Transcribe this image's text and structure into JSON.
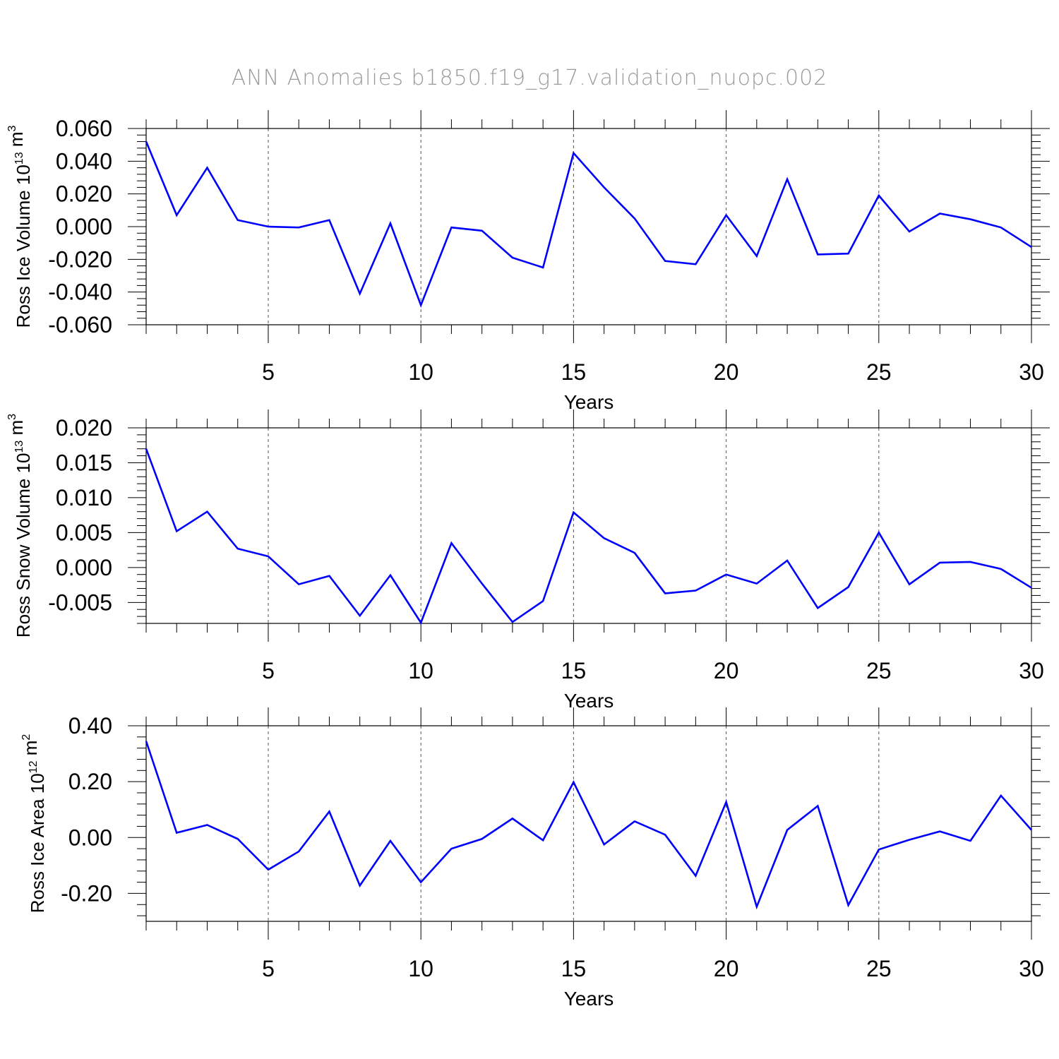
{
  "chart_data": [
    {
      "type": "line",
      "title": "ANN Anomalies b1850.f19_g17.validation_nuopc.002",
      "ylabel": {
        "prefix": "Ross Ice Volume 10",
        "exp": "13",
        "unit": " m",
        "unit_exp": "3"
      },
      "xlabel": "Years",
      "xlim": [
        1,
        30
      ],
      "ylim": [
        -0.06,
        0.06
      ],
      "x_ticks": [
        5,
        10,
        15,
        20,
        25,
        30
      ],
      "x_tick_labels": [
        "5",
        "10",
        "15",
        "20",
        "25",
        "30"
      ],
      "y_ticks": [
        -0.06,
        -0.04,
        -0.02,
        0.0,
        0.02,
        0.04,
        0.06
      ],
      "y_tick_labels": [
        "-0.060",
        "-0.040",
        "-0.020",
        "0.000",
        "0.020",
        "0.040",
        "0.060"
      ],
      "grid": "vertical dashed at major x ticks",
      "series": [
        {
          "name": "Ross Ice Volume",
          "color": "#0000ff",
          "x": [
            1,
            2,
            3,
            4,
            5,
            6,
            7,
            8,
            9,
            10,
            11,
            12,
            13,
            14,
            15,
            16,
            17,
            18,
            19,
            20,
            21,
            22,
            23,
            24,
            25,
            26,
            27,
            28,
            29,
            30
          ],
          "values": [
            0.052,
            0.007,
            0.036,
            0.004,
            0.0,
            -0.0005,
            0.004,
            -0.041,
            0.002,
            -0.048,
            -0.0005,
            -0.0025,
            -0.019,
            -0.025,
            0.045,
            0.024,
            0.005,
            -0.021,
            -0.023,
            0.007,
            -0.018,
            0.029,
            -0.017,
            -0.0165,
            0.019,
            -0.003,
            0.008,
            0.0045,
            -0.0005,
            -0.0125
          ]
        }
      ]
    },
    {
      "type": "line",
      "ylabel": {
        "prefix": "Ross Snow Volume 10",
        "exp": "13",
        "unit": " m",
        "unit_exp": "3"
      },
      "xlabel": "Years",
      "xlim": [
        1,
        30
      ],
      "ylim": [
        -0.008,
        0.02
      ],
      "x_ticks": [
        5,
        10,
        15,
        20,
        25,
        30
      ],
      "x_tick_labels": [
        "5",
        "10",
        "15",
        "20",
        "25",
        "30"
      ],
      "y_ticks": [
        -0.005,
        0.0,
        0.005,
        0.01,
        0.015,
        0.02
      ],
      "y_tick_labels": [
        "-0.005",
        "0.000",
        "0.005",
        "0.010",
        "0.015",
        "0.020"
      ],
      "grid": "vertical dashed at major x ticks",
      "series": [
        {
          "name": "Ross Snow Volume",
          "color": "#0000ff",
          "x": [
            1,
            2,
            3,
            4,
            5,
            6,
            7,
            8,
            9,
            10,
            11,
            12,
            13,
            14,
            15,
            16,
            17,
            18,
            19,
            20,
            21,
            22,
            23,
            24,
            25,
            26,
            27,
            28,
            29,
            30
          ],
          "values": [
            0.017,
            0.0052,
            0.008,
            0.0027,
            0.0016,
            -0.0024,
            -0.0012,
            -0.0069,
            -0.0011,
            -0.0079,
            0.0035,
            -0.0023,
            -0.0078,
            -0.0048,
            0.0079,
            0.0042,
            0.0021,
            -0.0037,
            -0.0033,
            -0.001,
            -0.0023,
            0.001,
            -0.0058,
            -0.0028,
            0.005,
            -0.0024,
            0.0007,
            0.0008,
            -0.0002,
            -0.0029
          ]
        }
      ]
    },
    {
      "type": "line",
      "ylabel": {
        "prefix": "Ross Ice Area 10",
        "exp": "12",
        "unit": " m",
        "unit_exp": "2"
      },
      "xlabel": "Years",
      "xlim": [
        1,
        30
      ],
      "ylim": [
        -0.3,
        0.4
      ],
      "x_ticks": [
        5,
        10,
        15,
        20,
        25,
        30
      ],
      "x_tick_labels": [
        "5",
        "10",
        "15",
        "20",
        "25",
        "30"
      ],
      "y_ticks": [
        -0.2,
        0.0,
        0.2,
        0.4
      ],
      "y_tick_labels": [
        "-0.20",
        "0.00",
        "0.20",
        "0.40"
      ],
      "grid": "vertical dashed at major x ticks",
      "series": [
        {
          "name": "Ross Ice Area",
          "color": "#0000ff",
          "x": [
            1,
            2,
            3,
            4,
            5,
            6,
            7,
            8,
            9,
            10,
            11,
            12,
            13,
            14,
            15,
            16,
            17,
            18,
            19,
            20,
            21,
            22,
            23,
            24,
            25,
            26,
            27,
            28,
            29,
            30
          ],
          "values": [
            0.345,
            0.017,
            0.045,
            -0.005,
            -0.115,
            -0.05,
            0.093,
            -0.172,
            -0.012,
            -0.16,
            -0.04,
            -0.005,
            0.068,
            -0.01,
            0.198,
            -0.025,
            0.058,
            0.01,
            -0.137,
            0.127,
            -0.248,
            0.027,
            0.113,
            -0.242,
            -0.043,
            -0.008,
            0.022,
            -0.012,
            0.15,
            0.027
          ]
        }
      ]
    }
  ]
}
